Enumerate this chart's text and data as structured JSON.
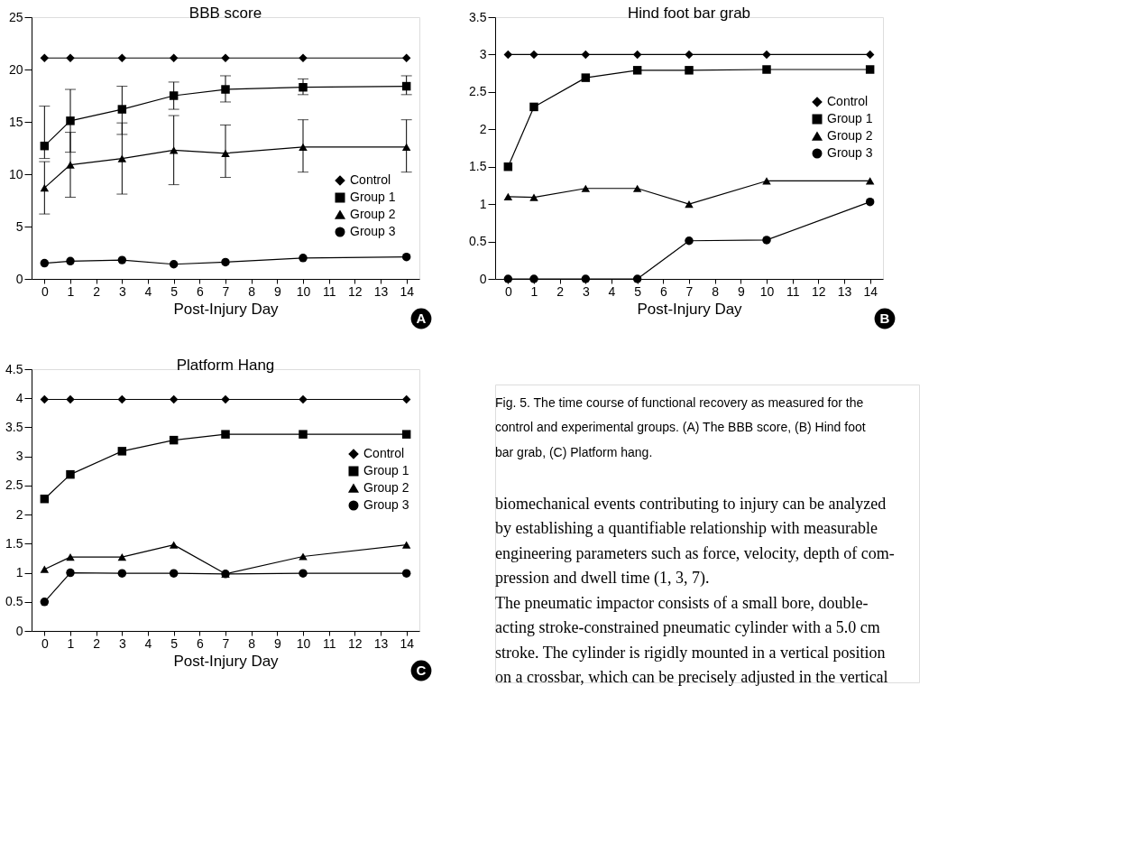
{
  "chart_data": [
    {
      "type": "line",
      "title": "BBB score",
      "xlabel": "Post-Injury Day",
      "x": [
        0,
        1,
        3,
        5,
        7,
        10,
        14
      ],
      "xlim": [
        -0.5,
        14.5
      ],
      "xticks": [
        0,
        1,
        2,
        3,
        4,
        5,
        6,
        7,
        8,
        9,
        10,
        11,
        12,
        13,
        14
      ],
      "ylim": [
        0,
        25
      ],
      "yticks": [
        0,
        5,
        10,
        15,
        20,
        25
      ],
      "grid": false,
      "legend": "right",
      "annotations": [
        "A"
      ],
      "series": [
        {
          "name": "Control",
          "color": "#000000",
          "marker": "diamond",
          "values": [
            21.1,
            21.1,
            21.1,
            21.1,
            21.1,
            21.1,
            21.1
          ]
        },
        {
          "name": "Group 1",
          "color": "#000000",
          "marker": "square",
          "values": [
            12.7,
            15.1,
            16.2,
            17.5,
            18.1,
            18.3,
            18.4
          ],
          "errors": [
            [
              11.5,
              16.5
            ],
            [
              12.1,
              18.1
            ],
            [
              13.8,
              18.4
            ],
            [
              16.2,
              18.8
            ],
            [
              16.9,
              19.4
            ],
            [
              17.6,
              19.1
            ],
            [
              17.6,
              19.4
            ]
          ]
        },
        {
          "name": "Group 2",
          "color": "#000000",
          "marker": "triangle",
          "values": [
            8.7,
            10.9,
            11.5,
            12.3,
            12.0,
            12.6,
            12.6
          ],
          "errors": [
            [
              6.2,
              11.2
            ],
            [
              7.8,
              14.0
            ],
            [
              8.1,
              14.9
            ],
            [
              9.0,
              15.6
            ],
            [
              9.7,
              14.7
            ],
            [
              10.2,
              15.2
            ],
            [
              10.2,
              15.2
            ]
          ]
        },
        {
          "name": "Group 3",
          "color": "#000000",
          "marker": "circle",
          "values": [
            1.5,
            1.7,
            1.8,
            1.4,
            1.6,
            2.0,
            2.1
          ]
        }
      ]
    },
    {
      "type": "line",
      "title": "Hind foot bar grab",
      "xlabel": "Post-Injury Day",
      "x": [
        0,
        1,
        3,
        5,
        7,
        10,
        14
      ],
      "xlim": [
        -0.5,
        14.5
      ],
      "xticks": [
        0,
        1,
        2,
        3,
        4,
        5,
        6,
        7,
        8,
        9,
        10,
        11,
        12,
        13,
        14
      ],
      "ylim": [
        0,
        3.5
      ],
      "yticks": [
        0,
        0.5,
        1,
        1.5,
        2,
        2.5,
        3,
        3.5
      ],
      "grid": false,
      "legend": "top right",
      "annotations": [
        "B"
      ],
      "series": [
        {
          "name": "Control",
          "color": "#000000",
          "marker": "diamond",
          "values": [
            3.0,
            3.0,
            3.0,
            3.0,
            3.0,
            3.0,
            3.0
          ]
        },
        {
          "name": "Group 1",
          "color": "#000000",
          "marker": "square",
          "values": [
            1.5,
            2.3,
            2.69,
            2.79,
            2.79,
            2.8,
            2.8
          ]
        },
        {
          "name": "Group 2",
          "color": "#000000",
          "marker": "triangle",
          "values": [
            1.1,
            1.09,
            1.21,
            1.21,
            1.0,
            1.31,
            1.31
          ]
        },
        {
          "name": "Group 3",
          "color": "#000000",
          "marker": "circle",
          "values": [
            0,
            0,
            0,
            0,
            0.51,
            0.52,
            1.03
          ]
        }
      ]
    },
    {
      "type": "line",
      "title": "Platform Hang",
      "xlabel": "Post-Injury Day",
      "x": [
        0,
        1,
        3,
        5,
        7,
        10,
        14
      ],
      "xlim": [
        -0.5,
        14.5
      ],
      "xticks": [
        0,
        1,
        2,
        3,
        4,
        5,
        6,
        7,
        8,
        9,
        10,
        11,
        12,
        13,
        14
      ],
      "ylim": [
        0,
        4.5
      ],
      "yticks": [
        0,
        0.5,
        1,
        1.5,
        2,
        2.5,
        3,
        3.5,
        4,
        4.5
      ],
      "grid": false,
      "legend": "top right",
      "annotations": [
        "C"
      ],
      "series": [
        {
          "name": "Control",
          "color": "#000000",
          "marker": "diamond",
          "values": [
            3.98,
            3.98,
            3.98,
            3.98,
            3.98,
            3.98,
            3.98
          ]
        },
        {
          "name": "Group 1",
          "color": "#000000",
          "marker": "square",
          "values": [
            2.27,
            2.69,
            3.09,
            3.28,
            3.38,
            3.38,
            3.38
          ]
        },
        {
          "name": "Group 2",
          "color": "#000000",
          "marker": "triangle",
          "values": [
            1.06,
            1.27,
            1.27,
            1.48,
            0.98,
            1.28,
            1.48
          ]
        },
        {
          "name": "Group 3",
          "color": "#000000",
          "marker": "circle",
          "values": [
            0.5,
            1.0,
            0.99,
            0.99,
            0.98,
            0.99,
            0.99
          ]
        }
      ]
    },
    {
      "type": "other",
      "annotations": [
        "Fig. 5. The time course of functional recovery as measured for the",
        "control and experimental groups. (A) The BBB score, (B) Hind foot",
        "bar grab, (C) Platform hang.",
        "biomechanical events contributing to injury can be analyzed",
        "by establishing a quantifiable relationship with measurable",
        "engineering parameters such as force, velocity, depth of com-",
        "pression and dwell time (1, 3, 7).",
        "   The pneumatic impactor consists of a small bore, double-",
        "acting stroke-constrained pneumatic cylinder with a 5.0 cm",
        "stroke. The cylinder is rigidly mounted in a vertical position",
        "on a crossbar, which can be precisely adjusted in the vertical"
      ]
    }
  ]
}
